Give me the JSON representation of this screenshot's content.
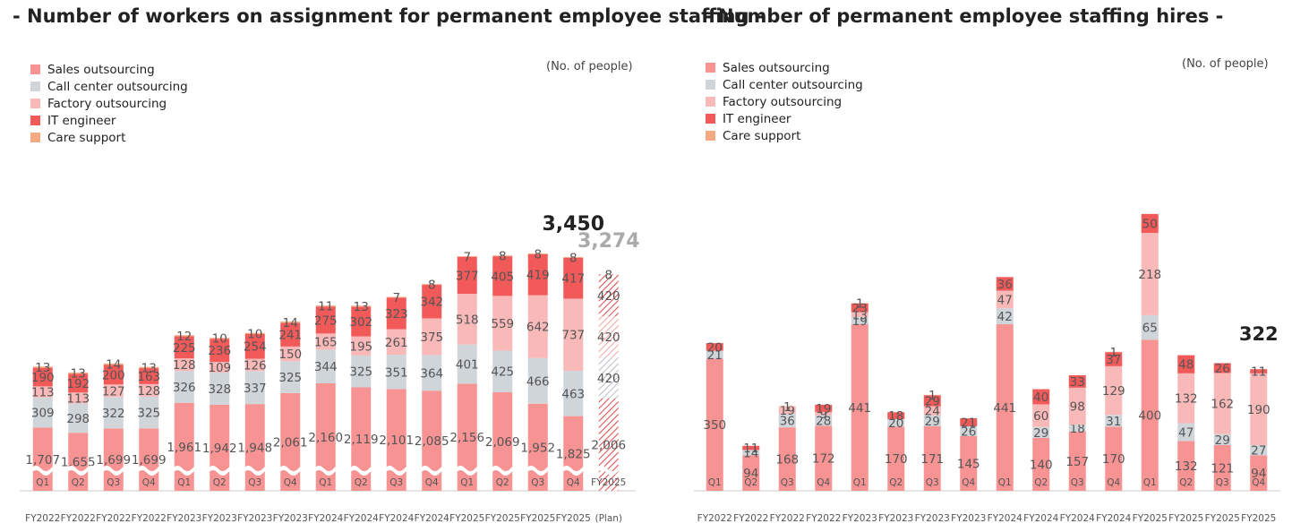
{
  "chart_data": [
    {
      "type": "bar",
      "stacked": true,
      "title": "- Number of workers on assignment for permanent employee staffing -",
      "unit": "(No. of people)",
      "legend_position": "top-left",
      "axis_break": true,
      "categories": [
        [
          "Q1",
          "FY2022"
        ],
        [
          "Q2",
          "FY2022"
        ],
        [
          "Q3",
          "FY2022"
        ],
        [
          "Q4",
          "FY2022"
        ],
        [
          "Q1",
          "FY2023"
        ],
        [
          "Q2",
          "FY2023"
        ],
        [
          "Q3",
          "FY2023"
        ],
        [
          "Q4",
          "FY2023"
        ],
        [
          "Q1",
          "FY2024"
        ],
        [
          "Q2",
          "FY2024"
        ],
        [
          "Q3",
          "FY2024"
        ],
        [
          "Q4",
          "FY2024"
        ],
        [
          "Q1",
          "FY2025"
        ],
        [
          "Q2",
          "FY2025"
        ],
        [
          "Q3",
          "FY2025"
        ],
        [
          "Q4",
          "FY2025"
        ],
        [
          "FY2025",
          "(Plan)"
        ]
      ],
      "series": [
        {
          "name": "Sales outsourcing",
          "color": "#f79393",
          "values": [
            1707,
            1655,
            1699,
            1699,
            1961,
            1942,
            1948,
            2061,
            2160,
            2119,
            2101,
            2085,
            2156,
            2069,
            1952,
            1825,
            2006
          ]
        },
        {
          "name": "Call center outsourcing",
          "color": "#d0d5da",
          "values": [
            309,
            298,
            322,
            325,
            326,
            328,
            337,
            325,
            344,
            325,
            351,
            364,
            401,
            425,
            466,
            463,
            420
          ]
        },
        {
          "name": "Factory outsourcing",
          "color": "#f9b9b9",
          "values": [
            113,
            113,
            127,
            128,
            128,
            109,
            126,
            150,
            165,
            195,
            261,
            375,
            518,
            559,
            642,
            737,
            420
          ]
        },
        {
          "name": "IT engineer",
          "color": "#f25959",
          "values": [
            190,
            192,
            200,
            163,
            225,
            236,
            254,
            241,
            275,
            302,
            323,
            342,
            377,
            405,
            419,
            417,
            420
          ]
        },
        {
          "name": "Care support",
          "color": "#f6a882",
          "values": [
            13,
            13,
            14,
            13,
            12,
            10,
            10,
            14,
            11,
            13,
            7,
            8,
            7,
            8,
            8,
            8,
            8
          ]
        }
      ],
      "annotations": [
        {
          "text": "3,450",
          "category_index": 15,
          "style": "actual"
        },
        {
          "text": "3,274",
          "category_index": 16,
          "style": "plan"
        }
      ],
      "plan_category_index": 16
    },
    {
      "type": "bar",
      "stacked": true,
      "title": "- Number of permanent employee staffing hires -",
      "unit": "(No. of people)",
      "legend_position": "top-left",
      "categories": [
        [
          "Q1",
          "FY2022"
        ],
        [
          "Q2",
          "FY2022"
        ],
        [
          "Q3",
          "FY2022"
        ],
        [
          "Q4",
          "FY2022"
        ],
        [
          "Q1",
          "FY2023"
        ],
        [
          "Q2",
          "FY2023"
        ],
        [
          "Q3",
          "FY2023"
        ],
        [
          "Q4",
          "FY2023"
        ],
        [
          "Q1",
          "FY2024"
        ],
        [
          "Q2",
          "FY2024"
        ],
        [
          "Q3",
          "FY2024"
        ],
        [
          "Q4",
          "FY2024"
        ],
        [
          "Q1",
          "FY2025"
        ],
        [
          "Q2",
          "FY2025"
        ],
        [
          "Q3",
          "FY2025"
        ],
        [
          "Q4",
          "FY2025"
        ]
      ],
      "series": [
        {
          "name": "Sales outsourcing",
          "color": "#f79393",
          "values": [
            350,
            94,
            168,
            172,
            441,
            170,
            171,
            145,
            441,
            140,
            157,
            170,
            400,
            132,
            121,
            94
          ]
        },
        {
          "name": "Call center outsourcing",
          "color": "#d0d5da",
          "values": [
            21,
            14,
            36,
            28,
            19,
            20,
            29,
            26,
            42,
            29,
            18,
            31,
            65,
            47,
            29,
            27
          ]
        },
        {
          "name": "Factory outsourcing",
          "color": "#f9b9b9",
          "values": [
            0,
            0,
            19,
            9,
            13,
            0,
            24,
            0,
            47,
            60,
            98,
            129,
            218,
            132,
            162,
            190
          ]
        },
        {
          "name": "IT engineer",
          "color": "#f25959",
          "values": [
            20,
            11,
            0,
            19,
            23,
            18,
            29,
            21,
            36,
            40,
            33,
            37,
            50,
            48,
            26,
            11
          ]
        },
        {
          "name": "Care support",
          "color": "#f6a882",
          "values": [
            0,
            0,
            1,
            0,
            1,
            0,
            1,
            0,
            0,
            0,
            0,
            1,
            0,
            0,
            0,
            0
          ]
        }
      ],
      "annotations": [
        {
          "text": "322",
          "category_index": 15,
          "style": "actual"
        }
      ]
    }
  ]
}
